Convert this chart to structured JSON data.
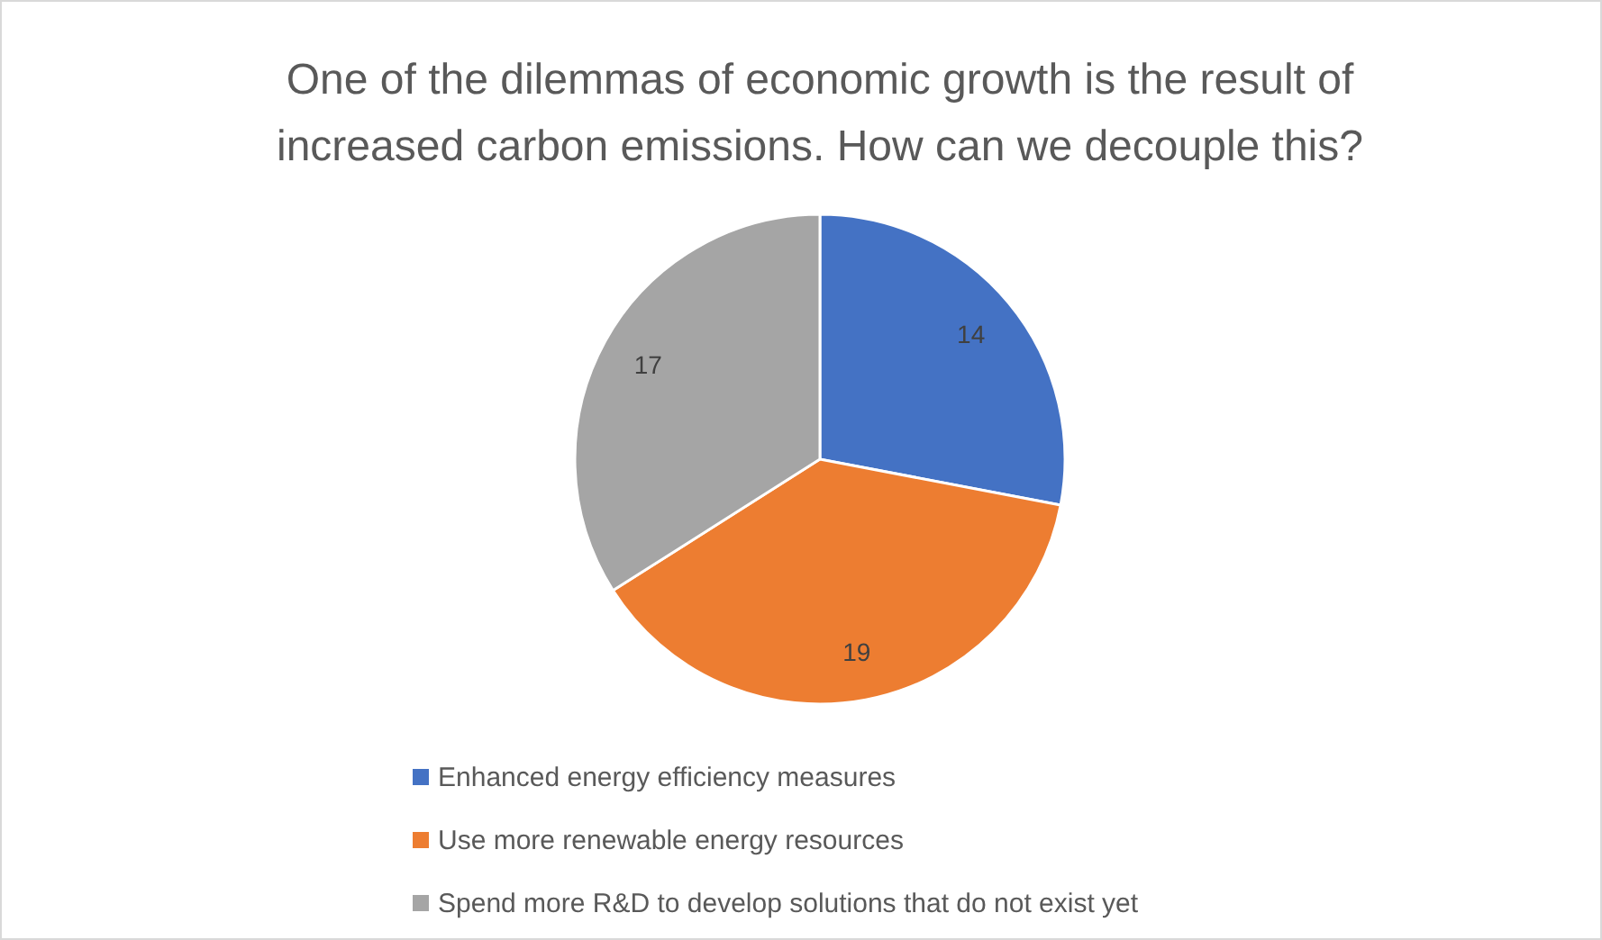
{
  "chart_data": {
    "type": "pie",
    "title": "One of the dilemmas of economic growth is the result of increased carbon emissions. How can we decouple this?",
    "categories": [
      "Enhanced energy efficiency measures",
      "Use more renewable energy resources",
      "Spend more R&D to develop solutions that do not exist yet"
    ],
    "values": [
      14,
      19,
      17
    ],
    "colors": [
      "#4472c4",
      "#ed7d31",
      "#a5a5a5"
    ],
    "data_labels": true,
    "legend": "bottom"
  }
}
